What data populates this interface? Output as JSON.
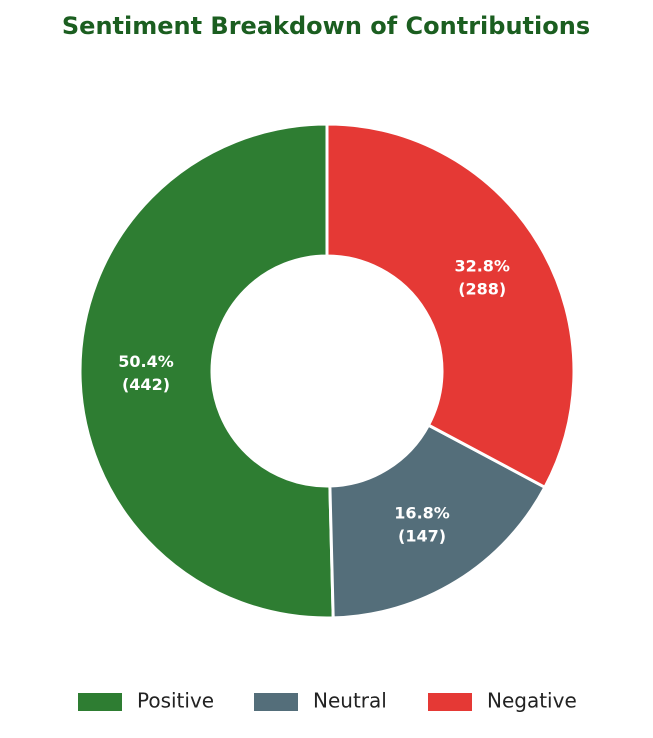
{
  "chart_data": {
    "type": "donut",
    "title": "Sentiment Breakdown of Contributions",
    "categories": [
      "Positive",
      "Neutral",
      "Negative"
    ],
    "values": [
      50.4,
      16.8,
      32.8
    ],
    "value_labels": [
      "50.4%",
      "16.8%",
      "32.8%"
    ],
    "counts": [
      442,
      147,
      288
    ],
    "count_labels": [
      "(442)",
      "(147)",
      "(288)"
    ],
    "colors": [
      "#2e7d32",
      "#546e7a",
      "#e53935"
    ],
    "direction": "counterclockwise",
    "legend": "bottom"
  }
}
